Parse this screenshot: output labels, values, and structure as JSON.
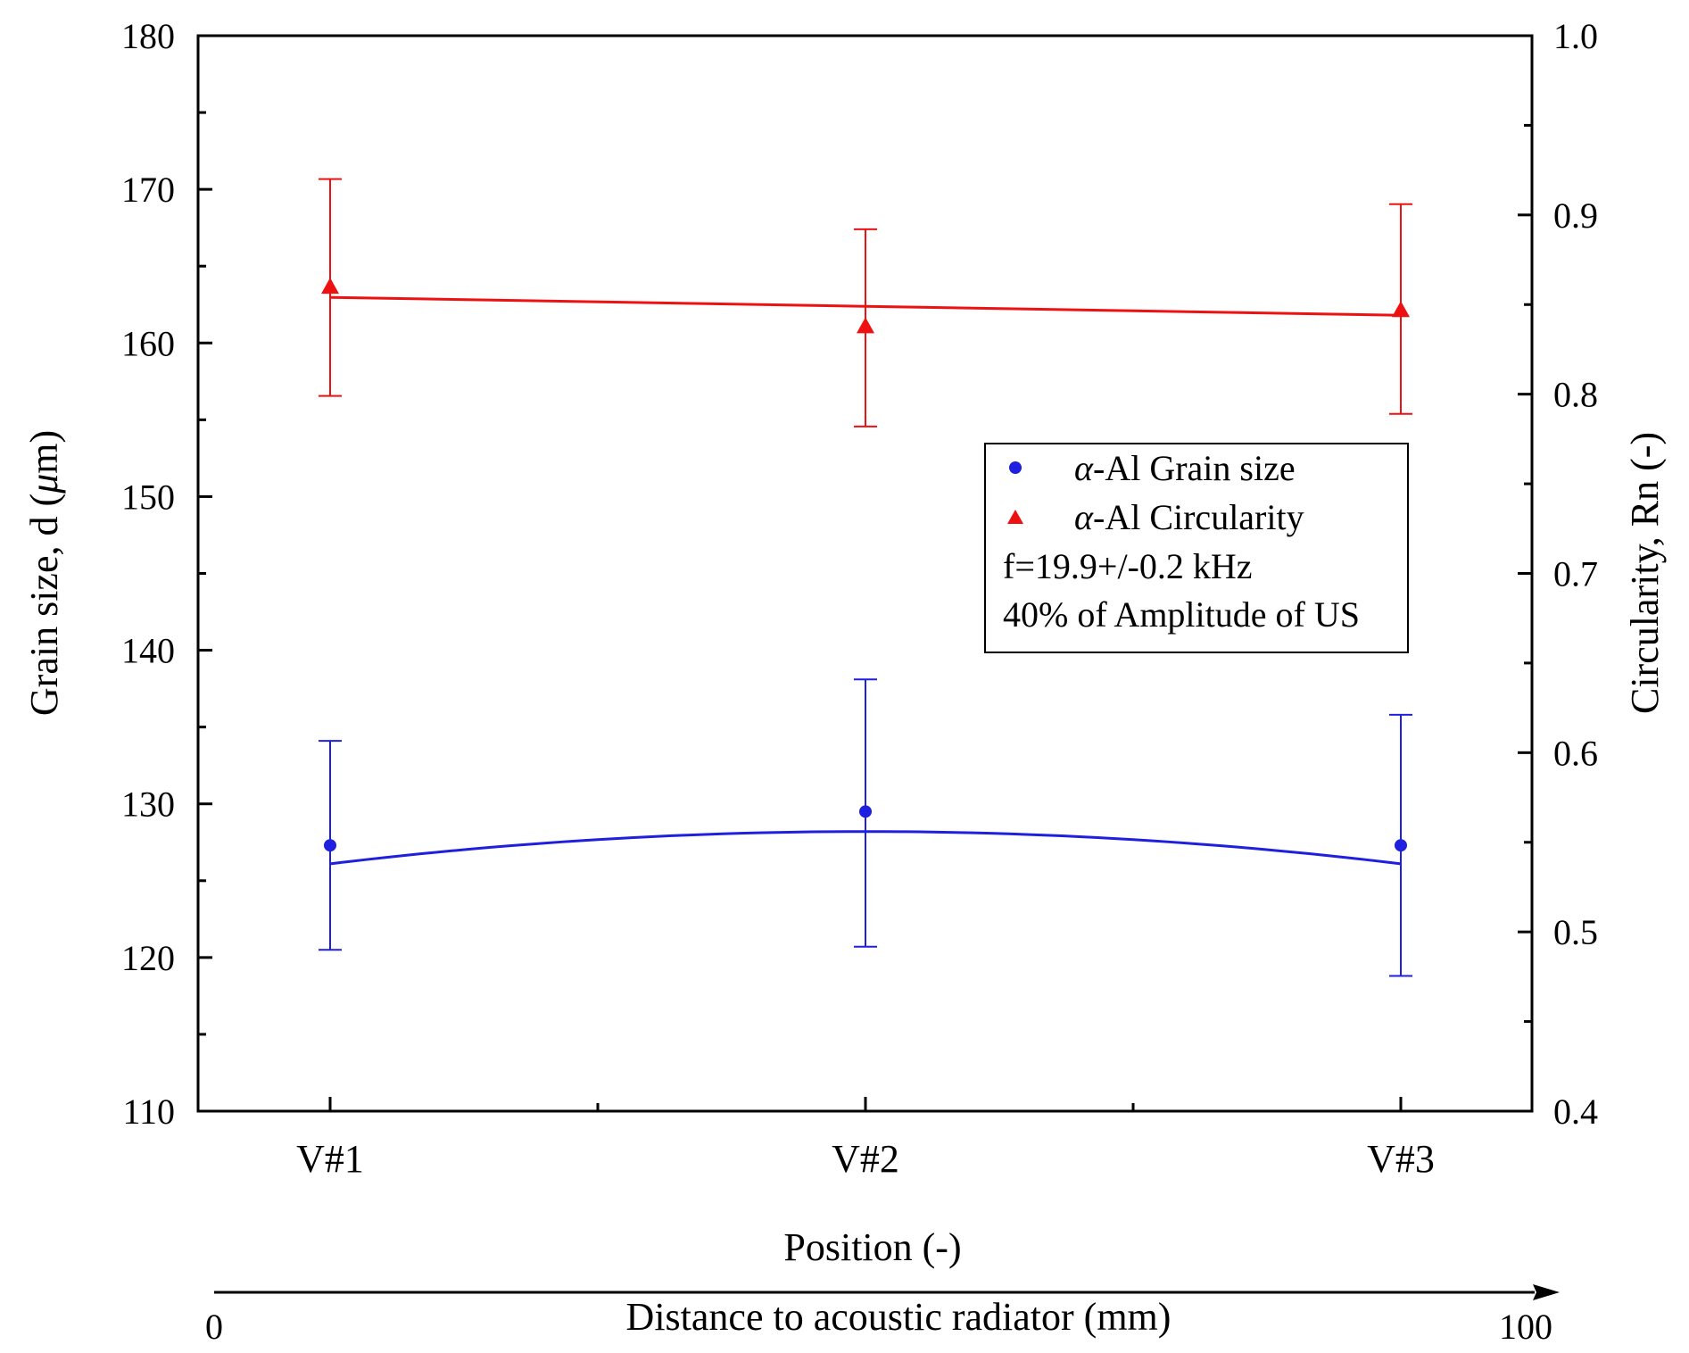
{
  "chart_data": {
    "type": "scatter",
    "categories": [
      "V#1",
      "V#2",
      "V#3"
    ],
    "xlabel": "Position (-)",
    "ylabel_left": "Grain size, d (",
    "ylabel_left_symbol": "μ",
    "ylabel_left_suffix": "m)",
    "ylabel_right": "Circularity, Rn (-)",
    "ylim_left": [
      110,
      180
    ],
    "ylim_right": [
      0.4,
      1.0
    ],
    "yticks_left": [
      "110",
      "120",
      "130",
      "140",
      "150",
      "160",
      "170",
      "180"
    ],
    "yticks_right": [
      "0.4",
      "0.5",
      "0.6",
      "0.7",
      "0.8",
      "0.9",
      "1.0"
    ],
    "series": [
      {
        "name": "α-Al Grain size",
        "axis": "left",
        "color": "#1f1fe0",
        "marker": "circle",
        "values": [
          127.3,
          129.5,
          127.3
        ],
        "err_low": [
          120.5,
          120.7,
          118.8
        ],
        "err_high": [
          134.1,
          138.1,
          135.8
        ],
        "fit": [
          126.1,
          128.2,
          126.1
        ],
        "fit_type": "quadratic"
      },
      {
        "name": "α-Al Circularity",
        "axis": "right",
        "color": "#ee1111",
        "marker": "triangle",
        "values": [
          0.86,
          0.838,
          0.847
        ],
        "err_low": [
          0.799,
          0.782,
          0.789
        ],
        "err_high": [
          0.92,
          0.892,
          0.906
        ],
        "fit": [
          0.854,
          0.849,
          0.844
        ],
        "fit_type": "linear"
      }
    ],
    "legend": {
      "placement": "center-right",
      "entries": [
        {
          "symbol": "α",
          "text": "-Al Grain size"
        },
        {
          "symbol": "α",
          "text": "-Al Circularity"
        }
      ],
      "notes": [
        "f=19.9+/-0.2 kHz",
        "40% of Amplitude of US"
      ]
    },
    "secondary_axis": {
      "label": "Distance to acoustic radiator (mm)",
      "start": "0",
      "end": "100"
    }
  }
}
